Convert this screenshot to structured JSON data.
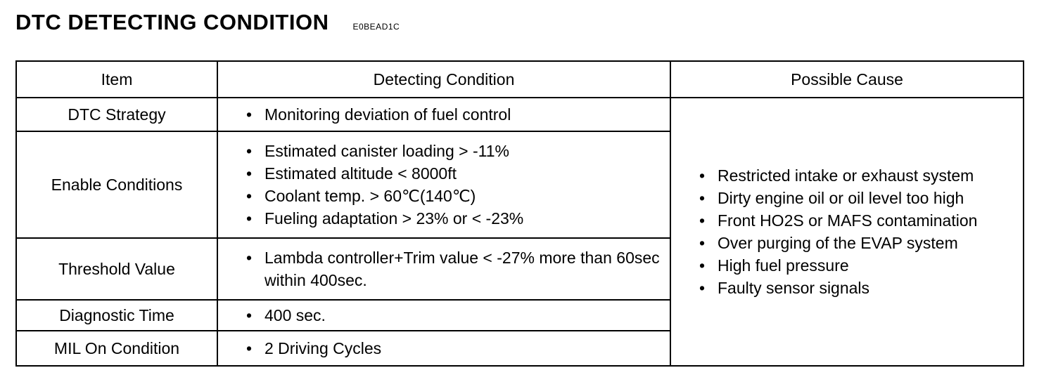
{
  "heading": {
    "title": "DTC DETECTING CONDITION",
    "code": "E0BEAD1C"
  },
  "table": {
    "headers": {
      "item": "Item",
      "condition": "Detecting Condition",
      "cause": "Possible Cause"
    },
    "rows": [
      {
        "item": "DTC Strategy",
        "conditions": [
          "Monitoring deviation of fuel control"
        ]
      },
      {
        "item": "Enable Conditions",
        "conditions": [
          "Estimated canister loading  >  -11%",
          "Estimated altitude  <  8000ft",
          "Coolant temp.  > 60℃(140℃)",
          "Fueling adaptation > 23% or < -23%"
        ]
      },
      {
        "item": "Threshold Value",
        "conditions": [
          "Lambda controller+Trim value  <  -27% more than 60sec within 400sec."
        ]
      },
      {
        "item": "Diagnostic Time",
        "conditions": [
          "400  sec."
        ]
      },
      {
        "item": "MIL On Condition",
        "conditions": [
          "2 Driving Cycles"
        ]
      }
    ],
    "possible_causes": [
      "Restricted intake or exhaust system",
      "Dirty engine oil or oil level too high",
      "Front HO2S or MAFS contamination",
      "Over purging of the EVAP system",
      "High fuel pressure",
      "Faulty sensor signals"
    ]
  }
}
